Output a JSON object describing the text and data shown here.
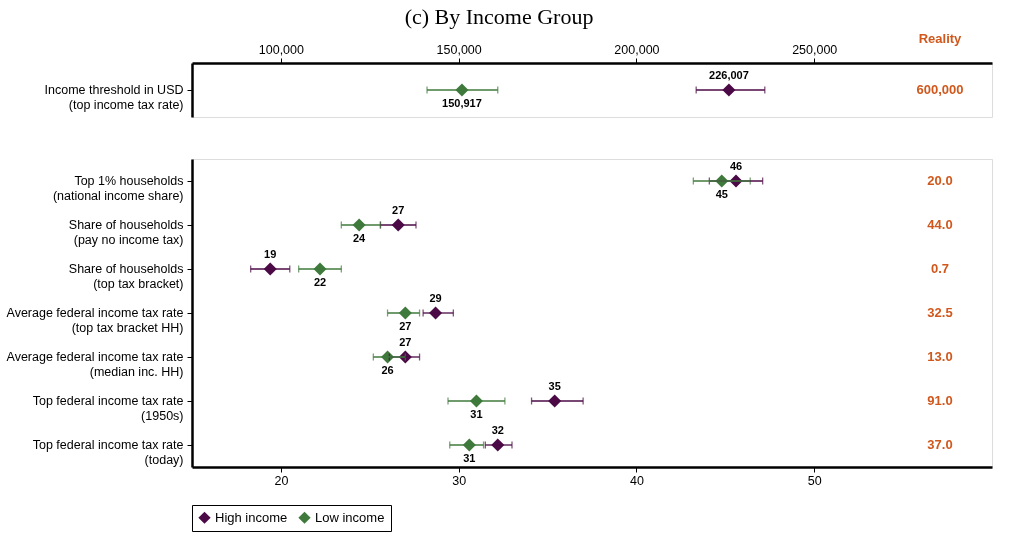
{
  "chart_data": [
    {
      "type": "scatter",
      "title": "(c) By Income Group",
      "orientation": "horizontal",
      "marker": "diamond",
      "categories": [
        "Income threshold in USD (top income tax rate)"
      ],
      "xlim": [
        75000,
        300000
      ],
      "xticks": [
        {
          "value": 100000,
          "label": "100,000"
        },
        {
          "value": 150000,
          "label": "150,000"
        },
        {
          "value": 200000,
          "label": "200,000"
        },
        {
          "value": 250000,
          "label": "250,000"
        }
      ],
      "series": [
        {
          "color": "#4b0a46",
          "values": [
            226007
          ],
          "errors": [
            [
              216800,
              236100
            ]
          ],
          "value_labels": [
            "226,007"
          ]
        },
        {
          "color": "#3f7a3c",
          "values": [
            150917
          ],
          "errors": [
            [
              141100,
              161000
            ]
          ],
          "value_labels": [
            "150,917"
          ]
        }
      ],
      "annotations": [
        "Reality",
        "600,000"
      ]
    },
    {
      "type": "scatter",
      "orientation": "horizontal",
      "marker": "diamond",
      "legend": "bottom",
      "categories": [
        "Top 1% households (national income share)",
        "Share of households (pay no income tax)",
        "Share of households (top tax bracket)",
        "Average federal income tax rate (top tax bracket HH)",
        "Average federal income tax rate (median inc. HH)",
        "Top federal income tax rate (1950s)",
        "Top federal income tax rate (today)"
      ],
      "xlim": [
        15,
        60
      ],
      "xticks": [
        20,
        30,
        40,
        50
      ],
      "series": [
        {
          "name": "High income",
          "color": "#4b0a46",
          "values": [
            45.6,
            26.6,
            19.4,
            28.7,
            27.0,
            35.4,
            32.2
          ],
          "errors": [
            [
              44.1,
              47.1
            ],
            [
              25.6,
              27.6
            ],
            [
              18.3,
              20.5
            ],
            [
              28.0,
              29.7
            ],
            [
              26.1,
              27.8
            ],
            [
              34.1,
              37.0
            ],
            [
              31.5,
              33.0
            ]
          ],
          "value_labels": [
            "46",
            "27",
            "19",
            "29",
            "27",
            "35",
            "32"
          ]
        },
        {
          "name": "Low income",
          "color": "#3f7a3c",
          "values": [
            44.8,
            24.4,
            22.2,
            27.0,
            26.0,
            31.0,
            30.6
          ],
          "errors": [
            [
              43.2,
              46.4
            ],
            [
              23.4,
              25.6
            ],
            [
              21.0,
              23.4
            ],
            [
              26.0,
              27.8
            ],
            [
              25.2,
              27.0
            ],
            [
              29.4,
              32.6
            ],
            [
              29.5,
              31.4
            ]
          ],
          "value_labels": [
            "45",
            "24",
            "22",
            "27",
            "26",
            "31",
            "31"
          ]
        }
      ],
      "annotations": [
        "20.0",
        "44.0",
        "0.7",
        "32.5",
        "13.0",
        "91.0",
        "37.0"
      ]
    }
  ]
}
